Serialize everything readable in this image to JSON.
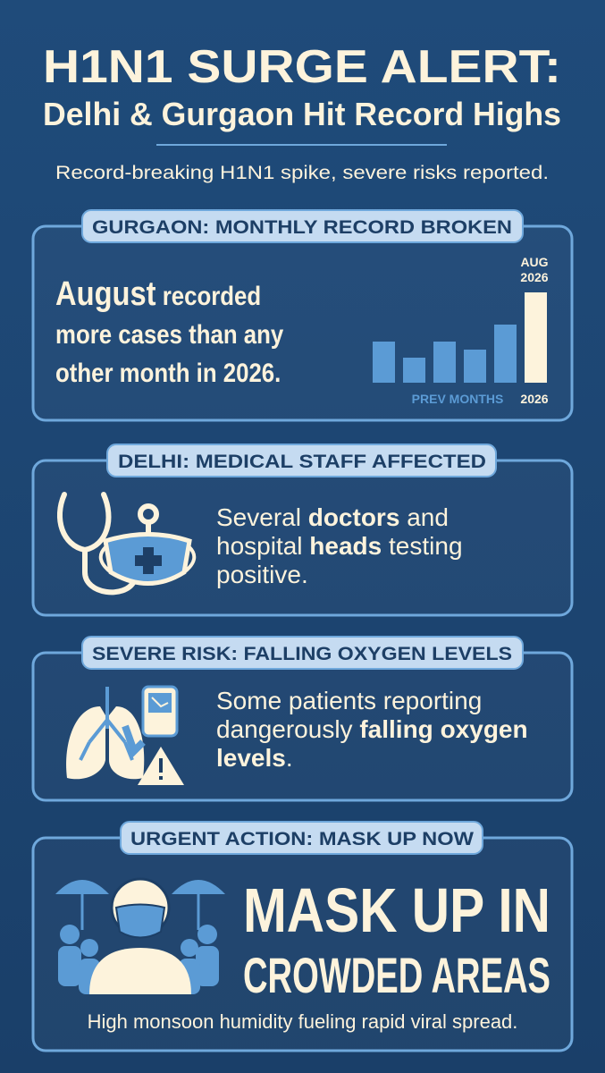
{
  "header": {
    "title": "H1N1 SURGE ALERT:",
    "subtitle": "Delhi & Gurgaon Hit Record Highs",
    "tagline": "Record-breaking H1N1 spike, severe risks reported."
  },
  "sections": [
    {
      "label": "GURGAON: MONTHLY RECORD BROKEN",
      "text": [
        "August",
        "recorded more cases than any other month in 2026."
      ],
      "chart": {
        "type": "bar",
        "values": [
          46,
          28,
          46,
          37,
          65,
          101
        ],
        "colors": [
          "#5b9bd5",
          "#5b9bd5",
          "#5b9bd5",
          "#5b9bd5",
          "#5b9bd5",
          "#fdf3dc"
        ],
        "highlight_label": [
          "AUG",
          "2026"
        ],
        "x_label": "PREV MONTHS",
        "x_highlight": "2026"
      }
    },
    {
      "label": "DELHI: MEDICAL STAFF AFFECTED",
      "text": [
        "Several",
        "doctors",
        "and hospital",
        "heads",
        "testing positive."
      ]
    },
    {
      "label": "SEVERE RISK: FALLING OXYGEN LEVELS",
      "text": [
        "Some patients reporting dangerously",
        "falling oxygen levels",
        "."
      ]
    },
    {
      "label": "URGENT ACTION: MASK UP NOW",
      "headline": [
        "MASK UP IN",
        "CROWDED AREAS"
      ],
      "text": [
        "High monsoon humidity fueling rapid viral spread."
      ]
    }
  ]
}
